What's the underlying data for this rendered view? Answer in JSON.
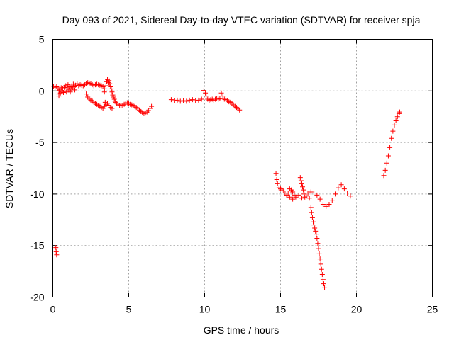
{
  "chart_data": {
    "type": "scatter",
    "title": "Day 093 of 2021, Sidereal Day-to-day VTEC variation (SDTVAR) for receiver spja",
    "xlabel": "GPS time / hours",
    "ylabel": "SDTVAR / TECUs",
    "xlim": [
      0,
      25
    ],
    "ylim": [
      -20,
      5
    ],
    "xticks": [
      "0",
      "5",
      "10",
      "15",
      "20",
      "25"
    ],
    "yticks": [
      "5",
      "0",
      "-5",
      "-10",
      "-15",
      "-20"
    ],
    "grid": true,
    "marker": "plus",
    "series": [
      {
        "color": "#ff0000",
        "points": [
          [
            0.05,
            0.45
          ],
          [
            0.15,
            0.35
          ],
          [
            0.25,
            0.4
          ],
          [
            0.35,
            0.2
          ],
          [
            0.4,
            -0.3
          ],
          [
            0.45,
            0.1
          ],
          [
            0.5,
            -0.2
          ],
          [
            0.55,
            0.3
          ],
          [
            0.6,
            -0.1
          ],
          [
            0.65,
            0.2
          ],
          [
            0.7,
            -0.15
          ],
          [
            0.75,
            0.35
          ],
          [
            0.8,
            0.0
          ],
          [
            0.85,
            0.5
          ],
          [
            0.9,
            -0.1
          ],
          [
            0.95,
            0.3
          ],
          [
            1.0,
            0.6
          ],
          [
            1.05,
            0.1
          ],
          [
            1.1,
            0.4
          ],
          [
            1.15,
            -0.1
          ],
          [
            1.2,
            0.2
          ],
          [
            1.25,
            0.5
          ],
          [
            1.3,
            0.3
          ],
          [
            1.35,
            0.65
          ],
          [
            1.4,
            0.4
          ],
          [
            1.45,
            0.1
          ],
          [
            1.5,
            0.55
          ],
          [
            1.6,
            0.7
          ],
          [
            1.7,
            0.5
          ],
          [
            1.8,
            0.6
          ],
          [
            1.9,
            0.55
          ],
          [
            2.0,
            0.5
          ],
          [
            2.1,
            0.6
          ],
          [
            2.2,
            0.7
          ],
          [
            2.3,
            0.8
          ],
          [
            2.4,
            0.75
          ],
          [
            2.5,
            0.7
          ],
          [
            2.6,
            0.6
          ],
          [
            2.7,
            0.5
          ],
          [
            2.8,
            0.6
          ],
          [
            2.9,
            0.65
          ],
          [
            3.0,
            0.6
          ],
          [
            3.1,
            0.55
          ],
          [
            3.2,
            0.5
          ],
          [
            3.3,
            0.4
          ],
          [
            3.4,
            0.2
          ],
          [
            0.2,
            -15.2
          ],
          [
            0.22,
            -15.6
          ],
          [
            0.25,
            -15.9
          ],
          [
            0.4,
            -0.5
          ],
          [
            0.42,
            0.0
          ],
          [
            2.2,
            -0.3
          ],
          [
            2.3,
            -0.6
          ],
          [
            2.4,
            -0.8
          ],
          [
            2.5,
            -0.9
          ],
          [
            2.6,
            -1.0
          ],
          [
            2.7,
            -1.1
          ],
          [
            2.8,
            -1.2
          ],
          [
            2.9,
            -1.3
          ],
          [
            3.0,
            -1.4
          ],
          [
            3.1,
            -1.5
          ],
          [
            3.2,
            -1.6
          ],
          [
            3.3,
            -1.7
          ],
          [
            3.4,
            -1.5
          ],
          [
            3.5,
            -1.3
          ],
          [
            3.6,
            -1.2
          ],
          [
            3.7,
            -1.4
          ],
          [
            3.8,
            -1.6
          ],
          [
            3.9,
            -1.7
          ],
          [
            3.5,
            0.5
          ],
          [
            3.55,
            0.9
          ],
          [
            3.6,
            1.1
          ],
          [
            3.65,
            0.8
          ],
          [
            3.7,
            1.0
          ],
          [
            3.75,
            0.7
          ],
          [
            3.8,
            0.4
          ],
          [
            3.85,
            0.2
          ],
          [
            3.9,
            -0.1
          ],
          [
            3.95,
            -0.4
          ],
          [
            4.0,
            -0.6
          ],
          [
            4.05,
            -0.8
          ],
          [
            4.1,
            -1.0
          ],
          [
            4.15,
            -1.1
          ],
          [
            4.2,
            -1.2
          ],
          [
            4.3,
            -1.3
          ],
          [
            4.4,
            -1.4
          ],
          [
            4.5,
            -1.45
          ],
          [
            4.6,
            -1.4
          ],
          [
            4.7,
            -1.3
          ],
          [
            4.8,
            -1.2
          ],
          [
            4.9,
            -1.15
          ],
          [
            5.0,
            -1.2
          ],
          [
            5.1,
            -1.3
          ],
          [
            5.2,
            -1.35
          ],
          [
            5.3,
            -1.4
          ],
          [
            5.4,
            -1.5
          ],
          [
            5.5,
            -1.6
          ],
          [
            5.6,
            -1.7
          ],
          [
            5.7,
            -1.85
          ],
          [
            5.8,
            -2.0
          ],
          [
            5.9,
            -2.1
          ],
          [
            6.0,
            -2.2
          ],
          [
            6.1,
            -2.15
          ],
          [
            6.2,
            -2.05
          ],
          [
            6.3,
            -1.9
          ],
          [
            6.4,
            -1.7
          ],
          [
            6.5,
            -1.5
          ],
          [
            3.4,
            -0.1
          ],
          [
            3.45,
            -1.1
          ],
          [
            3.5,
            -1.4
          ],
          [
            7.8,
            -0.85
          ],
          [
            8.0,
            -0.95
          ],
          [
            8.2,
            -0.9
          ],
          [
            8.4,
            -1.0
          ],
          [
            8.6,
            -0.95
          ],
          [
            8.8,
            -1.0
          ],
          [
            9.0,
            -0.9
          ],
          [
            9.2,
            -0.85
          ],
          [
            9.4,
            -0.95
          ],
          [
            9.6,
            -0.9
          ],
          [
            9.8,
            -0.8
          ],
          [
            9.95,
            0.05
          ],
          [
            10.05,
            -0.2
          ],
          [
            10.1,
            -0.5
          ],
          [
            10.2,
            -0.8
          ],
          [
            10.3,
            -0.9
          ],
          [
            10.4,
            -0.85
          ],
          [
            10.5,
            -0.8
          ],
          [
            10.6,
            -0.9
          ],
          [
            10.7,
            -0.8
          ],
          [
            10.8,
            -0.7
          ],
          [
            10.9,
            -0.8
          ],
          [
            11.0,
            -0.75
          ],
          [
            11.1,
            -0.2
          ],
          [
            11.2,
            -0.5
          ],
          [
            11.3,
            -0.8
          ],
          [
            11.4,
            -0.85
          ],
          [
            11.5,
            -0.95
          ],
          [
            11.6,
            -1.05
          ],
          [
            11.7,
            -1.1
          ],
          [
            11.8,
            -1.2
          ],
          [
            11.9,
            -1.35
          ],
          [
            12.0,
            -1.5
          ],
          [
            12.1,
            -1.6
          ],
          [
            12.2,
            -1.75
          ],
          [
            12.3,
            -1.85
          ],
          [
            14.7,
            -8.0
          ],
          [
            14.75,
            -8.6
          ],
          [
            14.8,
            -9.0
          ],
          [
            14.9,
            -9.4
          ],
          [
            15.0,
            -9.5
          ],
          [
            15.1,
            -9.6
          ],
          [
            15.2,
            -9.7
          ],
          [
            15.3,
            -9.9
          ],
          [
            15.4,
            -10.1
          ],
          [
            15.5,
            -9.9
          ],
          [
            15.6,
            -9.5
          ],
          [
            15.7,
            -9.6
          ],
          [
            15.8,
            -9.8
          ],
          [
            15.9,
            -10.1
          ],
          [
            16.0,
            -10.3
          ],
          [
            15.6,
            -10.3
          ],
          [
            15.8,
            -10.5
          ],
          [
            16.3,
            -8.4
          ],
          [
            16.35,
            -8.7
          ],
          [
            16.4,
            -9.0
          ],
          [
            16.45,
            -9.3
          ],
          [
            16.5,
            -9.6
          ],
          [
            16.55,
            -10.0
          ],
          [
            16.6,
            -10.3
          ],
          [
            16.7,
            -10.2
          ],
          [
            16.8,
            -9.9
          ],
          [
            16.9,
            -10.4
          ],
          [
            17.0,
            -11.3
          ],
          [
            17.05,
            -11.8
          ],
          [
            17.1,
            -12.3
          ],
          [
            17.15,
            -12.7
          ],
          [
            17.2,
            -13.0
          ],
          [
            17.25,
            -13.3
          ],
          [
            17.3,
            -13.6
          ],
          [
            17.35,
            -13.9
          ],
          [
            17.4,
            -14.3
          ],
          [
            17.45,
            -14.8
          ],
          [
            17.5,
            -15.3
          ],
          [
            17.55,
            -15.8
          ],
          [
            17.6,
            -16.3
          ],
          [
            17.65,
            -16.8
          ],
          [
            17.7,
            -17.3
          ],
          [
            17.75,
            -17.8
          ],
          [
            17.8,
            -18.3
          ],
          [
            17.85,
            -18.7
          ],
          [
            17.9,
            -19.1
          ],
          [
            16.2,
            -10.1
          ],
          [
            16.4,
            -10.4
          ],
          [
            17.0,
            -9.8
          ],
          [
            17.2,
            -9.9
          ],
          [
            17.4,
            -10.1
          ],
          [
            17.6,
            -10.5
          ],
          [
            17.8,
            -11.0
          ],
          [
            18.0,
            -11.2
          ],
          [
            18.2,
            -11.0
          ],
          [
            18.4,
            -10.6
          ],
          [
            18.6,
            -10.0
          ],
          [
            18.8,
            -9.4
          ],
          [
            19.0,
            -9.1
          ],
          [
            19.2,
            -9.5
          ],
          [
            19.4,
            -9.9
          ],
          [
            19.6,
            -10.2
          ],
          [
            21.8,
            -8.2
          ],
          [
            21.9,
            -7.7
          ],
          [
            22.0,
            -7.0
          ],
          [
            22.1,
            -6.3
          ],
          [
            22.2,
            -5.5
          ],
          [
            22.3,
            -4.6
          ],
          [
            22.4,
            -3.9
          ],
          [
            22.5,
            -3.3
          ],
          [
            22.6,
            -2.9
          ],
          [
            22.7,
            -2.5
          ],
          [
            22.8,
            -2.2
          ],
          [
            22.85,
            -2.05
          ]
        ]
      }
    ]
  }
}
